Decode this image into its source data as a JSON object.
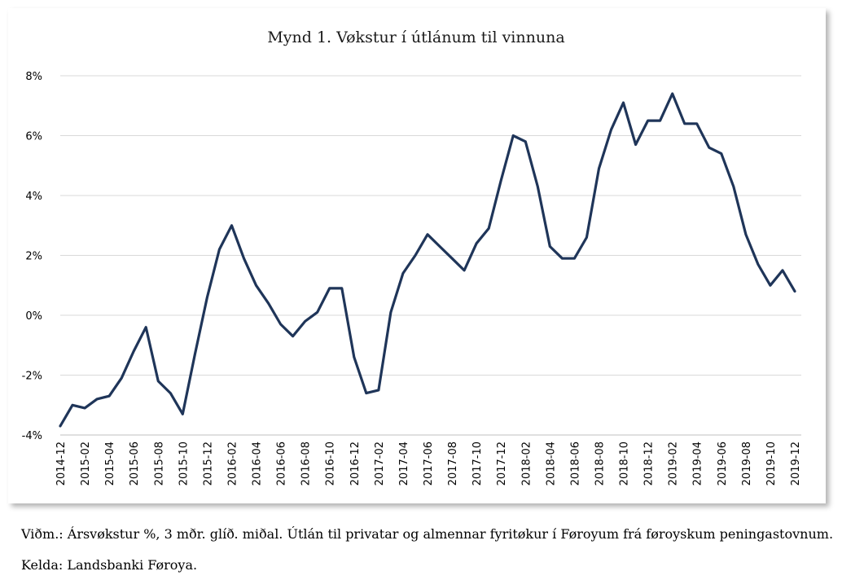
{
  "figure": {
    "note": "Viðm.: Ársvøkstur %, 3 mðr. glíð. miðal. Útlán til privatar og almennar fyritøkur í Føroyum frá føroyskum peningastovnum.",
    "source": "Kelda: Landsbanki Føroya."
  },
  "colors": {
    "line": "#1f3559",
    "grid": "#d9d9d9",
    "axis": "#bfbfbf"
  },
  "chart_data": {
    "type": "line",
    "title": "Mynd 1. Vøkstur í útlánum til vinnuna",
    "xlabel": "",
    "ylabel": "",
    "ylim": [
      -4,
      8
    ],
    "yticks": [
      -4,
      -2,
      0,
      2,
      4,
      6,
      8
    ],
    "ytick_labels": [
      "-4%",
      "-2%",
      "0%",
      "2%",
      "4%",
      "6%",
      "8%"
    ],
    "grid": "horizontal",
    "x": [
      "2014-12",
      "2015-01",
      "2015-02",
      "2015-03",
      "2015-04",
      "2015-05",
      "2015-06",
      "2015-07",
      "2015-08",
      "2015-09",
      "2015-10",
      "2015-11",
      "2015-12",
      "2016-01",
      "2016-02",
      "2016-03",
      "2016-04",
      "2016-05",
      "2016-06",
      "2016-07",
      "2016-08",
      "2016-09",
      "2016-10",
      "2016-11",
      "2016-12",
      "2017-01",
      "2017-02",
      "2017-03",
      "2017-04",
      "2017-05",
      "2017-06",
      "2017-07",
      "2017-08",
      "2017-09",
      "2017-10",
      "2017-11",
      "2017-12",
      "2018-01",
      "2018-02",
      "2018-03",
      "2018-04",
      "2018-05",
      "2018-06",
      "2018-07",
      "2018-08",
      "2018-09",
      "2018-10",
      "2018-11",
      "2018-12",
      "2019-01",
      "2019-02",
      "2019-03",
      "2019-04",
      "2019-05",
      "2019-06",
      "2019-07",
      "2019-08",
      "2019-09",
      "2019-10",
      "2019-11",
      "2019-12"
    ],
    "xtick_labels": [
      "2014-12",
      "2015-02",
      "2015-04",
      "2015-06",
      "2015-08",
      "2015-10",
      "2015-12",
      "2016-02",
      "2016-04",
      "2016-06",
      "2016-08",
      "2016-10",
      "2016-12",
      "2017-02",
      "2017-04",
      "2017-06",
      "2017-08",
      "2017-10",
      "2017-12",
      "2018-02",
      "2018-04",
      "2018-06",
      "2018-08",
      "2018-10",
      "2018-12",
      "2019-02",
      "2019-04",
      "2019-06",
      "2019-08",
      "2019-10",
      "2019-12"
    ],
    "series": [
      {
        "name": "",
        "values": [
          -3.7,
          -3.0,
          -3.1,
          -2.8,
          -2.7,
          -2.1,
          -1.2,
          -0.4,
          -2.2,
          -2.6,
          -3.3,
          -1.3,
          0.6,
          2.2,
          3.0,
          1.9,
          1.0,
          0.4,
          -0.3,
          -0.7,
          -0.2,
          0.1,
          0.9,
          0.9,
          -1.4,
          -2.6,
          -2.5,
          0.1,
          1.4,
          2.0,
          2.7,
          2.3,
          1.9,
          1.5,
          2.4,
          2.9,
          4.5,
          6.0,
          5.8,
          4.3,
          2.3,
          1.9,
          1.9,
          2.6,
          4.9,
          6.2,
          7.1,
          5.7,
          6.5,
          6.5,
          7.4,
          6.4,
          6.4,
          5.6,
          5.4,
          4.3,
          2.7,
          1.7,
          1.0,
          1.5,
          0.8
        ]
      }
    ]
  }
}
